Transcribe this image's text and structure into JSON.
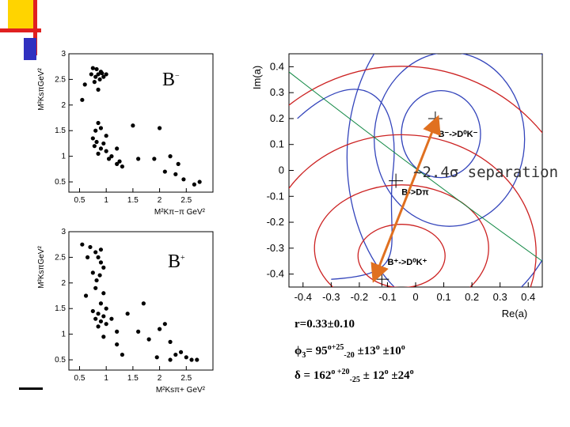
{
  "decor": {
    "accent_yellow": "#ffd700",
    "accent_red": "#e02020",
    "accent_blue": "#3030c0",
    "underline": "#000000"
  },
  "charts": {
    "bminus_label": "B",
    "bminus_sup": "−",
    "bplus_label": "B",
    "bplus_sup": "+",
    "separation_text": "~2.4σ separation",
    "results": {
      "r": "r=0.33±0.10",
      "phi_symbol": "ϕ",
      "phi_sub": "3",
      "phi_text": "= 95",
      "phi_deg": "o",
      "phi_plus": "+25",
      "phi_minus": "-20",
      "phi_rest": " ±13",
      "phi_deg2": "o",
      "phi_rest2": " ±10",
      "phi_deg3": "o",
      "delta_symbol": "δ",
      "delta_text": " = 162",
      "delta_deg": "o",
      "delta_plus": " +20",
      "delta_minus": "-25",
      "delta_rest": " ± 12",
      "delta_deg2": "o",
      "delta_rest2": " ±24",
      "delta_deg3": "o"
    }
  },
  "chart_data": [
    {
      "type": "scatter",
      "title": "",
      "xlabel": "M²Kπ−π GeV²",
      "ylabel": "M²KsπGeV²",
      "xlim": [
        0.3,
        3.0
      ],
      "ylim": [
        0.3,
        3.0
      ],
      "xticks": [
        0.5,
        1,
        1.5,
        2,
        2.5
      ],
      "xtick_labels": [
        "0.5",
        "1",
        "1.5",
        "2",
        "2.5"
      ],
      "yticks": [
        0.5,
        1,
        1.5,
        2,
        2.5,
        3
      ],
      "ytick_labels": [
        "0.5",
        "1",
        "1.5",
        "2",
        "2.5",
        "3"
      ],
      "points": [
        [
          0.75,
          2.72
        ],
        [
          0.8,
          2.55
        ],
        [
          0.85,
          2.6
        ],
        [
          0.9,
          2.65
        ],
        [
          0.78,
          2.45
        ],
        [
          0.88,
          2.5
        ],
        [
          0.95,
          2.55
        ],
        [
          1.0,
          2.6
        ],
        [
          0.6,
          2.4
        ],
        [
          0.55,
          2.1
        ],
        [
          0.85,
          2.3
        ],
        [
          0.92,
          2.62
        ],
        [
          0.72,
          2.6
        ],
        [
          0.82,
          2.7
        ],
        [
          0.85,
          1.65
        ],
        [
          0.9,
          1.55
        ],
        [
          0.8,
          1.5
        ],
        [
          0.75,
          1.35
        ],
        [
          0.82,
          1.28
        ],
        [
          0.78,
          1.2
        ],
        [
          0.9,
          1.15
        ],
        [
          0.95,
          1.25
        ],
        [
          1.0,
          1.1
        ],
        [
          0.85,
          1.05
        ],
        [
          1.05,
          0.95
        ],
        [
          1.1,
          1.0
        ],
        [
          1.2,
          0.85
        ],
        [
          1.25,
          0.9
        ],
        [
          1.3,
          0.8
        ],
        [
          1.0,
          1.4
        ],
        [
          1.5,
          1.6
        ],
        [
          1.2,
          1.15
        ],
        [
          1.6,
          0.95
        ],
        [
          2.0,
          1.55
        ],
        [
          1.9,
          0.95
        ],
        [
          2.2,
          1.0
        ],
        [
          2.1,
          0.7
        ],
        [
          2.3,
          0.65
        ],
        [
          2.45,
          0.55
        ],
        [
          2.65,
          0.45
        ],
        [
          2.75,
          0.5
        ],
        [
          2.35,
          0.85
        ]
      ],
      "legend": ""
    },
    {
      "type": "scatter",
      "title": "",
      "xlabel": "M²Ksπ+ GeV²",
      "ylabel": "M²KsπGeV²",
      "xlim": [
        0.3,
        3.0
      ],
      "ylim": [
        0.3,
        3.0
      ],
      "xticks": [
        0.5,
        1,
        1.5,
        2,
        2.5
      ],
      "xtick_labels": [
        "0.5",
        "1",
        "1.5",
        "2",
        "2.5"
      ],
      "yticks": [
        0.5,
        1,
        1.5,
        2,
        2.5,
        3
      ],
      "ytick_labels": [
        "0.5",
        "1",
        "1.5",
        "2",
        "2.5",
        "3"
      ],
      "points": [
        [
          0.55,
          2.75
        ],
        [
          0.7,
          2.7
        ],
        [
          0.8,
          2.6
        ],
        [
          0.9,
          2.65
        ],
        [
          0.65,
          2.5
        ],
        [
          0.85,
          2.5
        ],
        [
          0.9,
          2.4
        ],
        [
          0.95,
          2.3
        ],
        [
          0.75,
          2.2
        ],
        [
          0.88,
          2.15
        ],
        [
          0.82,
          2.05
        ],
        [
          0.8,
          1.9
        ],
        [
          0.95,
          1.8
        ],
        [
          0.62,
          1.75
        ],
        [
          0.9,
          1.6
        ],
        [
          1.0,
          1.5
        ],
        [
          0.75,
          1.45
        ],
        [
          0.85,
          1.4
        ],
        [
          0.95,
          1.35
        ],
        [
          0.8,
          1.3
        ],
        [
          0.9,
          1.25
        ],
        [
          1.0,
          1.2
        ],
        [
          0.85,
          1.15
        ],
        [
          1.1,
          1.3
        ],
        [
          1.2,
          1.05
        ],
        [
          0.95,
          0.95
        ],
        [
          1.2,
          0.8
        ],
        [
          1.3,
          0.6
        ],
        [
          1.4,
          1.4
        ],
        [
          1.7,
          1.6
        ],
        [
          1.6,
          1.05
        ],
        [
          1.8,
          0.9
        ],
        [
          2.0,
          1.1
        ],
        [
          2.1,
          1.2
        ],
        [
          2.2,
          0.85
        ],
        [
          2.3,
          0.6
        ],
        [
          2.4,
          0.65
        ],
        [
          2.5,
          0.55
        ],
        [
          2.6,
          0.5
        ],
        [
          2.7,
          0.5
        ],
        [
          2.2,
          0.5
        ],
        [
          1.95,
          0.55
        ]
      ],
      "legend": ""
    },
    {
      "type": "contour",
      "title": "",
      "xlabel": "Re(a)",
      "ylabel": "Im(a)",
      "xlim": [
        -0.45,
        0.45
      ],
      "ylim": [
        -0.45,
        0.45
      ],
      "xticks": [
        -0.4,
        -0.3,
        -0.2,
        -0.1,
        0,
        0.1,
        0.2,
        0.3,
        0.4
      ],
      "xtick_labels": [
        "-0.4",
        "-0.3",
        "-0.2",
        "-0.1",
        "0",
        "0.1",
        "0.2",
        "0.3",
        "0.4"
      ],
      "yticks": [
        -0.4,
        -0.3,
        -0.2,
        -0.1,
        0,
        0.1,
        0.2,
        0.3,
        0.4
      ],
      "ytick_labels": [
        "-0.4",
        "-0.3",
        "-0.2",
        "-0.1",
        "0",
        "0.1",
        "0.2",
        "0.3",
        "0.4"
      ],
      "markers": [
        {
          "name": "B−->D0K−",
          "x": 0.07,
          "y": 0.2,
          "label_x": 0.08,
          "label_y": 0.13,
          "label": "B⁻->D⁰K⁻"
        },
        {
          "name": "B->Dπ",
          "x": -0.07,
          "y": -0.04,
          "label_x": -0.05,
          "label_y": -0.095,
          "label": "B->Dπ"
        },
        {
          "name": "B+->D0K+",
          "x": -0.12,
          "y": -0.42,
          "label_x": -0.1,
          "label_y": -0.365,
          "label": "B⁺->D⁰K⁺"
        }
      ],
      "arrow": {
        "from": [
          -0.14,
          -0.4
        ],
        "to": [
          0.07,
          0.18
        ]
      },
      "legend": ""
    }
  ]
}
